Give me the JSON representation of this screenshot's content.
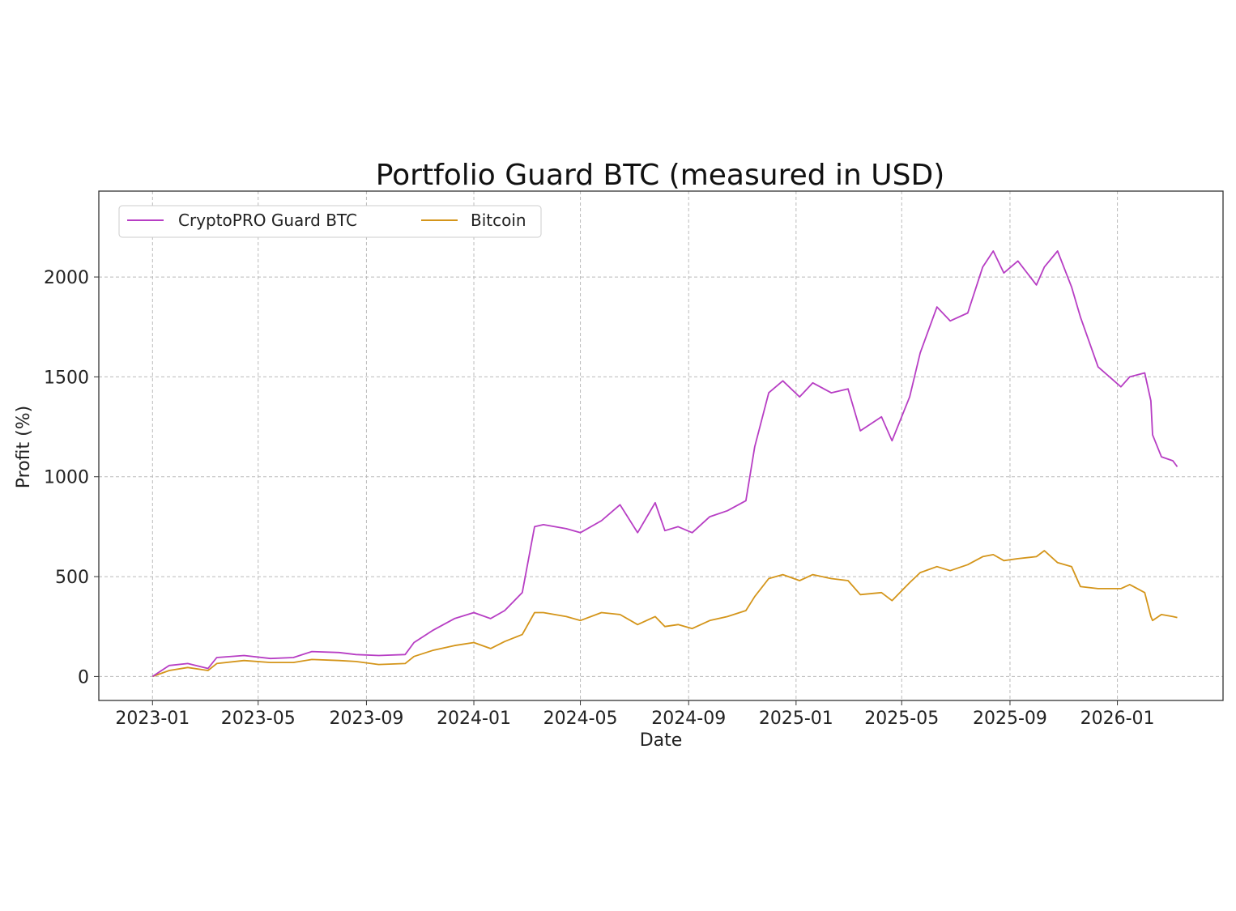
{
  "chart_data": {
    "type": "line",
    "title": "Portfolio Guard BTC (measured in USD)",
    "xlabel": "Date",
    "ylabel": "Profit (%)",
    "xlim": [
      "2022-11-01",
      "2026-05-01"
    ],
    "ylim": [
      -120,
      2430
    ],
    "grid": true,
    "legend_position": "top-left",
    "x_ticks": [
      "2023-01",
      "2023-05",
      "2023-09",
      "2024-01",
      "2024-05",
      "2024-09",
      "2025-01",
      "2025-05",
      "2025-09",
      "2026-01"
    ],
    "y_ticks": [
      0,
      500,
      1000,
      1500,
      2000
    ],
    "x": [
      "2023-01-01",
      "2023-01-20",
      "2023-02-10",
      "2023-03-05",
      "2023-03-15",
      "2023-04-15",
      "2023-05-15",
      "2023-06-10",
      "2023-07-01",
      "2023-08-01",
      "2023-08-20",
      "2023-09-15",
      "2023-10-15",
      "2023-10-25",
      "2023-11-15",
      "2023-12-10",
      "2024-01-01",
      "2024-01-20",
      "2024-02-05",
      "2024-02-25",
      "2024-03-10",
      "2024-03-20",
      "2024-04-15",
      "2024-05-01",
      "2024-05-25",
      "2024-06-15",
      "2024-07-05",
      "2024-07-25",
      "2024-08-05",
      "2024-08-20",
      "2024-09-05",
      "2024-09-25",
      "2024-10-15",
      "2024-11-05",
      "2024-11-15",
      "2024-12-01",
      "2024-12-17",
      "2025-01-05",
      "2025-01-20",
      "2025-02-10",
      "2025-03-01",
      "2025-03-15",
      "2025-04-08",
      "2025-04-20",
      "2025-05-10",
      "2025-05-22",
      "2025-06-10",
      "2025-06-25",
      "2025-07-15",
      "2025-08-01",
      "2025-08-13",
      "2025-08-25",
      "2025-09-10",
      "2025-10-01",
      "2025-10-10",
      "2025-10-25",
      "2025-11-10",
      "2025-11-20",
      "2025-12-10",
      "2026-01-05",
      "2026-01-15",
      "2026-02-01",
      "2026-02-08",
      "2026-02-10",
      "2026-02-20",
      "2026-03-05",
      "2026-03-10"
    ],
    "series": [
      {
        "name": "CryptoPRO Guard BTC",
        "color": "#b73ec4",
        "values": [
          0,
          55,
          65,
          40,
          95,
          105,
          90,
          95,
          125,
          120,
          110,
          105,
          110,
          170,
          230,
          290,
          320,
          290,
          330,
          420,
          750,
          760,
          740,
          720,
          780,
          860,
          720,
          870,
          730,
          750,
          720,
          800,
          830,
          880,
          1150,
          1420,
          1480,
          1400,
          1470,
          1420,
          1440,
          1230,
          1300,
          1180,
          1400,
          1620,
          1850,
          1780,
          1820,
          2050,
          2130,
          2020,
          2080,
          1960,
          2050,
          2130,
          1950,
          1800,
          1550,
          1450,
          1500,
          1520,
          1380,
          1210,
          1100,
          1080,
          1050
        ]
      },
      {
        "name": "Bitcoin",
        "color": "#d4951a",
        "values": [
          0,
          30,
          45,
          30,
          65,
          80,
          70,
          70,
          85,
          80,
          75,
          60,
          65,
          100,
          130,
          155,
          170,
          140,
          175,
          210,
          320,
          320,
          300,
          280,
          320,
          310,
          260,
          300,
          250,
          260,
          240,
          280,
          300,
          330,
          400,
          490,
          510,
          480,
          510,
          490,
          480,
          410,
          420,
          380,
          470,
          520,
          550,
          530,
          560,
          600,
          610,
          580,
          590,
          600,
          630,
          570,
          550,
          450,
          440,
          440,
          460,
          420,
          300,
          280,
          310,
          300,
          295
        ]
      }
    ]
  }
}
